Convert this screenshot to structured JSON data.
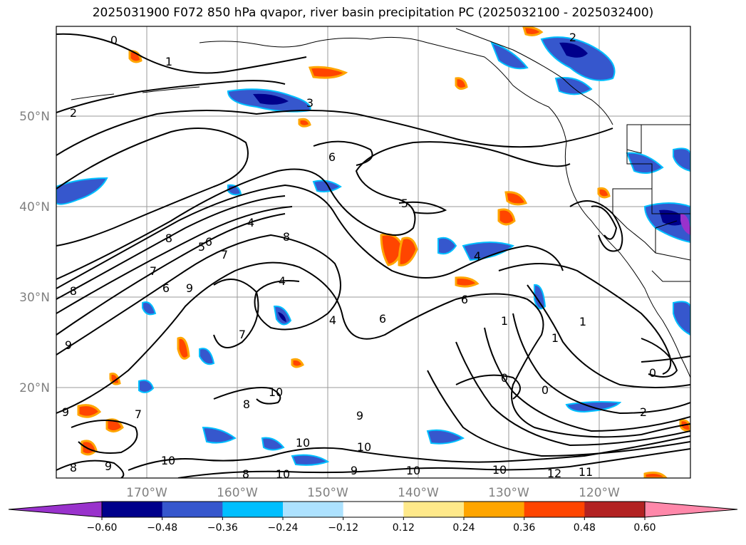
{
  "title": "2025031900 F072 850 hPa qvapor, river basin precipitation PC (2025032100 - 2025032400)",
  "lat_labels": [
    "50°N",
    "40°N",
    "30°N",
    "20°N"
  ],
  "lon_labels": [
    "170°W",
    "160°W",
    "150°W",
    "140°W",
    "130°W",
    "120°W"
  ],
  "colorbar": {
    "ticks": [
      "−0.60",
      "−0.48",
      "−0.36",
      "−0.24",
      "−0.12",
      "0.12",
      "0.24",
      "0.36",
      "0.48",
      "0.60"
    ],
    "colors": [
      "#9932CC",
      "#00008B",
      "#3657CD",
      "#00BFFF",
      "#ADE2FF",
      "#FFFFFF",
      "#FFE98A",
      "#FFA500",
      "#FF4500",
      "#B22222",
      "#FF88AA"
    ],
    "levels": [
      -0.6,
      -0.48,
      -0.36,
      -0.24,
      -0.12,
      0.12,
      0.24,
      0.36,
      0.48,
      0.6
    ],
    "extend": "both"
  },
  "contour_labels": [
    "0",
    "1",
    "2",
    "3",
    "6",
    "5",
    "4",
    "8",
    "7",
    "6",
    "9",
    "9",
    "8",
    "7",
    "4",
    "6",
    "4",
    "8",
    "7",
    "6",
    "1",
    "1",
    "0",
    "0",
    "0",
    "2",
    "9",
    "10",
    "10",
    "9",
    "10",
    "10",
    "12",
    "11",
    "8",
    "9",
    "10",
    "10",
    "8",
    "8",
    "7",
    "5",
    "6",
    "2",
    "4",
    "9",
    "10",
    "1"
  ]
}
